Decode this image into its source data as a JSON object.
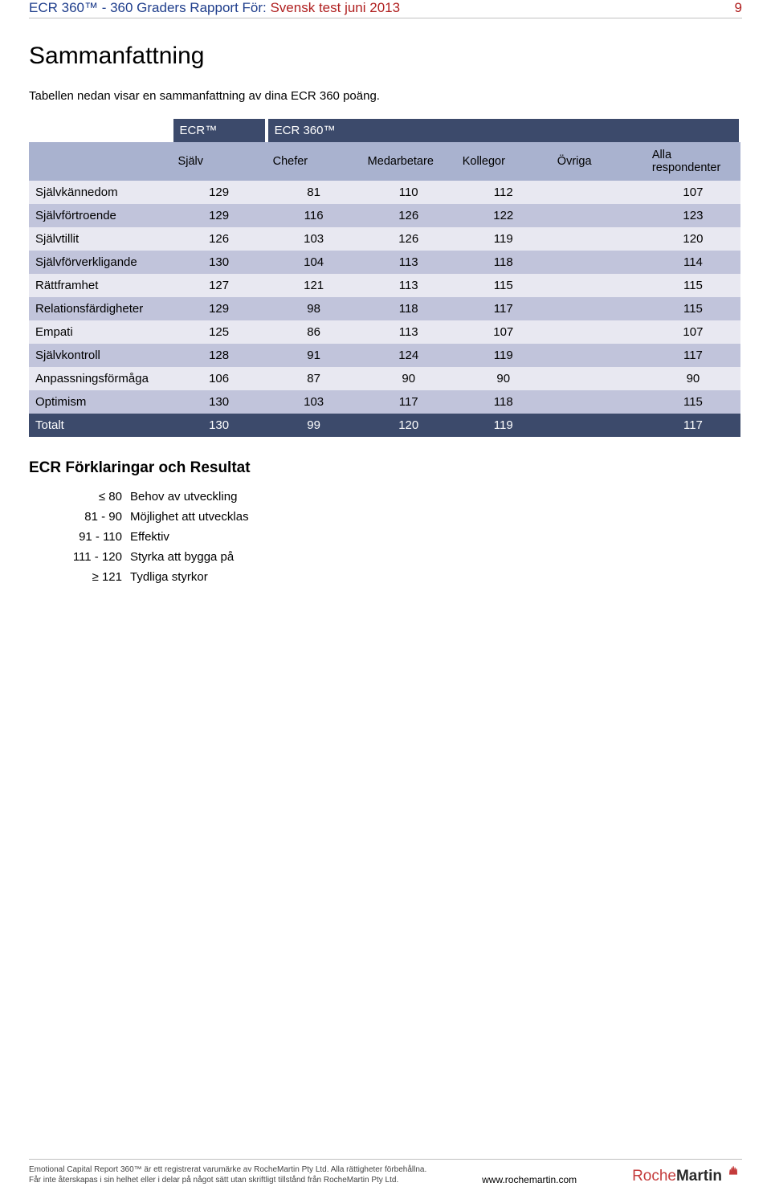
{
  "header": {
    "prefix": "ECR 360™ - 360 Graders Rapport För: ",
    "subject": "Svensk test juni 2013",
    "page_number": "9"
  },
  "section_title": "Sammanfattning",
  "intro_text": "Tabellen nedan visar en sammanfattning av dina ECR 360 poäng.",
  "table": {
    "top_headers": {
      "left": "ECR™",
      "right": "ECR 360™"
    },
    "columns": [
      "Själv",
      "Chefer",
      "Medarbetare",
      "Kollegor",
      "Övriga",
      "Alla respondenter"
    ],
    "rows": [
      {
        "label": "Självkännedom",
        "vals": [
          "129",
          "81",
          "110",
          "112",
          "",
          "107"
        ]
      },
      {
        "label": "Självförtroende",
        "vals": [
          "129",
          "116",
          "126",
          "122",
          "",
          "123"
        ]
      },
      {
        "label": "Självtillit",
        "vals": [
          "126",
          "103",
          "126",
          "119",
          "",
          "120"
        ]
      },
      {
        "label": "Självförverkligande",
        "vals": [
          "130",
          "104",
          "113",
          "118",
          "",
          "114"
        ]
      },
      {
        "label": "Rättframhet",
        "vals": [
          "127",
          "121",
          "113",
          "115",
          "",
          "115"
        ]
      },
      {
        "label": "Relationsfärdigheter",
        "vals": [
          "129",
          "98",
          "118",
          "117",
          "",
          "115"
        ]
      },
      {
        "label": "Empati",
        "vals": [
          "125",
          "86",
          "113",
          "107",
          "",
          "107"
        ]
      },
      {
        "label": "Självkontroll",
        "vals": [
          "128",
          "91",
          "124",
          "119",
          "",
          "117"
        ]
      },
      {
        "label": "Anpassningsförmåga",
        "vals": [
          "106",
          "87",
          "90",
          "90",
          "",
          "90"
        ]
      },
      {
        "label": "Optimism",
        "vals": [
          "130",
          "103",
          "117",
          "118",
          "",
          "115"
        ]
      }
    ],
    "total": {
      "label": "Totalt",
      "vals": [
        "130",
        "99",
        "120",
        "119",
        "",
        "117"
      ]
    }
  },
  "explain_title": "ECR Förklaringar och Resultat",
  "legend": [
    {
      "key": "≤ 80",
      "val": "Behov av utveckling"
    },
    {
      "key": "81 - 90",
      "val": "Möjlighet att utvecklas"
    },
    {
      "key": "91 - 110",
      "val": "Effektiv"
    },
    {
      "key": "111 - 120",
      "val": "Styrka att bygga på"
    },
    {
      "key": "≥ 121",
      "val": "Tydliga styrkor"
    }
  ],
  "footer": {
    "line1": "Emotional Capital Report 360™ är ett registrerat varumärke av RocheMartin Pty Ltd. Alla rättigheter förbehållna.",
    "line2": "Får inte återskapas i sin helhet eller i delar på något sätt utan skriftligt tillstånd från RocheMartin Pty Ltd.",
    "url": "www.rochemartin.com",
    "logo_left": "Roche",
    "logo_right": "Martin"
  },
  "colors": {
    "header_blue": "#1f3e8c",
    "header_red": "#b02020",
    "table_dark": "#3c4a6b",
    "table_mid": "#a9b2cf",
    "row_light": "#e8e8f1",
    "row_dark": "#c1c4db"
  }
}
